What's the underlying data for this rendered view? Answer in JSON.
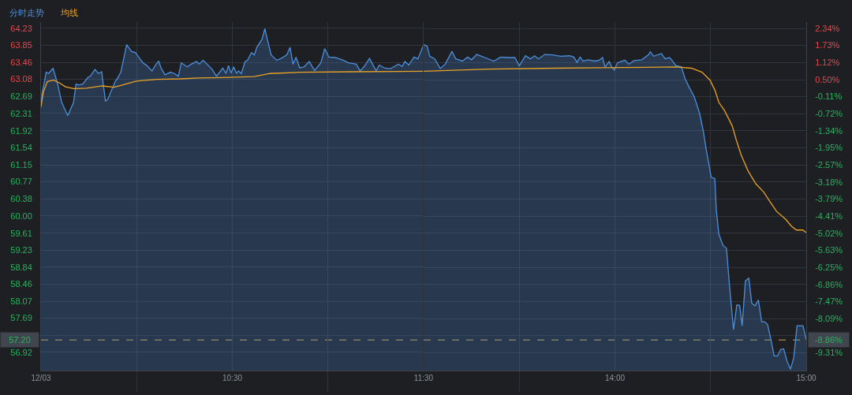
{
  "chart_data": [
    {
      "type": "line",
      "series": [
        {
          "name": "分时走势",
          "type": "area",
          "color": "#4d8fdc",
          "x": [
            9.5,
            9.505,
            9.527,
            9.54,
            9.563,
            9.587,
            9.608,
            9.64,
            9.67,
            9.683,
            9.697,
            9.718,
            9.745,
            9.758,
            9.782,
            9.8,
            9.817,
            9.827,
            9.837,
            9.848,
            9.888,
            9.902,
            9.917,
            9.948,
            9.972,
            9.995,
            10.012,
            10.033,
            10.053,
            10.08,
            10.102,
            10.115,
            10.128,
            10.148,
            10.177,
            10.197,
            10.218,
            10.233,
            10.265,
            10.285,
            10.313,
            10.327,
            10.347,
            10.375,
            10.395,
            10.417,
            10.45,
            10.467,
            10.48,
            10.493,
            10.507,
            10.522,
            10.532,
            10.547,
            10.567,
            10.58,
            10.6,
            10.615,
            10.628,
            10.655,
            10.67,
            10.683,
            10.703,
            10.732,
            10.752,
            10.785,
            10.802,
            10.817,
            10.833,
            10.852,
            10.875,
            10.902,
            10.93,
            10.963,
            10.983,
            11.005,
            11.038,
            11.08,
            11.107,
            11.148,
            11.168,
            11.19,
            11.217,
            11.252,
            11.268,
            11.298,
            11.327,
            11.368,
            11.388,
            11.402,
            11.422,
            11.45,
            11.47,
            11.5
          ],
          "values": [
            62.44,
            62.74,
            63.24,
            63.21,
            63.33,
            62.97,
            62.56,
            62.26,
            62.56,
            62.97,
            62.95,
            62.97,
            63.12,
            63.15,
            63.3,
            63.21,
            63.25,
            62.91,
            62.59,
            62.62,
            63.03,
            63.12,
            63.24,
            63.86,
            63.71,
            63.68,
            63.57,
            63.45,
            63.39,
            63.27,
            63.42,
            63.49,
            63.33,
            63.18,
            63.24,
            63.21,
            63.15,
            63.45,
            63.36,
            63.42,
            63.48,
            63.42,
            63.51,
            63.39,
            63.3,
            63.15,
            63.33,
            63.21,
            63.39,
            63.22,
            63.36,
            63.21,
            63.27,
            63.21,
            63.48,
            63.51,
            63.68,
            63.63,
            63.8,
            63.98,
            64.22,
            63.98,
            63.63,
            63.51,
            63.54,
            63.63,
            63.8,
            63.42,
            63.58,
            63.34,
            63.36,
            63.48,
            63.28,
            63.45,
            63.77,
            63.58,
            63.57,
            63.51,
            63.45,
            63.42,
            63.27,
            63.37,
            63.55,
            63.27,
            63.4,
            63.33,
            63.32,
            63.42,
            63.37,
            63.48,
            63.4,
            63.58,
            63.54,
            63.86
          ]
        },
        {
          "name": "均线",
          "color": "#e9a227",
          "x": [
            9.5,
            9.512,
            9.533,
            9.567,
            9.595,
            9.628,
            9.67,
            9.738,
            9.82,
            9.882,
            9.917,
            9.998,
            10.108,
            10.232,
            10.327,
            10.45,
            10.615,
            10.697,
            10.86,
            11.135,
            11.5
          ],
          "values": [
            62.47,
            62.79,
            63.03,
            63.06,
            63.0,
            62.91,
            62.87,
            62.88,
            62.93,
            62.9,
            62.94,
            63.04,
            63.08,
            63.09,
            63.11,
            63.12,
            63.14,
            63.21,
            63.24,
            63.25,
            63.26
          ]
        }
      ],
      "xlim": [
        9.5,
        11.5
      ],
      "xticks": [
        {
          "value": 9.5,
          "label": "12/03"
        },
        {
          "value": 10,
          "label": null
        },
        {
          "value": 10.5,
          "label": "10:30"
        },
        {
          "value": 11,
          "label": null
        },
        {
          "value": 11.5,
          "label": "11:30"
        }
      ],
      "ylim": [
        56.51,
        64.37
      ],
      "yticks": [
        64.23,
        63.85,
        63.46,
        63.08,
        62.69,
        62.31,
        61.92,
        61.54,
        61.15,
        60.77,
        60.38,
        {
          "value": 60,
          "label": "60.00"
        },
        59.61,
        59.23,
        58.84,
        58.46,
        58.07,
        57.69,
        {
          "value": 57.31,
          "label": null
        },
        56.92
      ],
      "ref_lines": [
        {
          "axis": "y",
          "value": 57.2,
          "label": "57.20",
          "color": "#c9a54f",
          "line_style": "dashed"
        }
      ],
      "grid": true,
      "legend": "top left"
    },
    {
      "type": "line",
      "series": [
        {
          "type": "area",
          "color": "#4d8fdc",
          "x": [
            13.0,
            13.018,
            13.032,
            13.058,
            13.087,
            13.113,
            13.148,
            13.168,
            13.203,
            13.23,
            13.25,
            13.278,
            13.32,
            13.367,
            13.402,
            13.442,
            13.477,
            13.5,
            13.532,
            13.558,
            13.58,
            13.6,
            13.633,
            13.675,
            13.717,
            13.763,
            13.785,
            13.802,
            13.818,
            13.833,
            13.86,
            13.895,
            13.918,
            13.935,
            13.948,
            13.97,
            13.983,
            13.997,
            14.013,
            14.052,
            14.072,
            14.1,
            14.14,
            14.175,
            14.185,
            14.202,
            14.243,
            14.263,
            14.285,
            14.298,
            14.318,
            14.347,
            14.367,
            14.387,
            14.415,
            14.442,
            14.462,
            14.475,
            14.49,
            14.503,
            14.522,
            14.53,
            14.543,
            14.565,
            14.583,
            14.598,
            14.608,
            14.62,
            14.637,
            14.652,
            14.665,
            14.682,
            14.7,
            14.715,
            14.732,
            14.75,
            14.767,
            14.783,
            14.798,
            14.815,
            14.832,
            14.85,
            14.867,
            14.882,
            14.9,
            14.918,
            14.935,
            14.952,
            14.983,
            15
          ],
          "values": [
            63.86,
            63.83,
            63.6,
            63.54,
            63.32,
            63.42,
            63.71,
            63.54,
            63.49,
            63.58,
            63.52,
            63.64,
            63.57,
            63.49,
            63.58,
            63.57,
            63.57,
            63.38,
            63.61,
            63.54,
            63.61,
            63.54,
            63.64,
            63.63,
            63.6,
            63.61,
            63.58,
            63.46,
            63.58,
            63.49,
            63.52,
            63.49,
            63.51,
            63.57,
            63.36,
            63.48,
            63.36,
            63.29,
            63.45,
            63.51,
            63.42,
            63.5,
            63.52,
            63.63,
            63.7,
            63.6,
            63.66,
            63.54,
            63.57,
            63.51,
            63.39,
            63.36,
            63.09,
            62.91,
            62.68,
            62.32,
            61.91,
            61.55,
            61.19,
            60.87,
            60.84,
            60.13,
            59.59,
            59.33,
            59.27,
            58.47,
            57.99,
            57.43,
            57.99,
            57.98,
            57.52,
            58.53,
            58.6,
            58.03,
            57.97,
            58.1,
            57.61,
            57.61,
            57.55,
            57.22,
            56.84,
            56.84,
            56.99,
            57.0,
            56.72,
            56.54,
            56.81,
            57.52,
            57.52,
            57.2
          ]
        },
        {
          "color": "#e9a227",
          "x": [
            13.0,
            13.347,
            13.688,
            14.168,
            14.318,
            14.4,
            14.455,
            14.497,
            14.523,
            14.543,
            14.572,
            14.613,
            14.633,
            14.66,
            14.695,
            14.737,
            14.777,
            14.812,
            14.845,
            14.893,
            14.922,
            14.948,
            14.982,
            15
          ],
          "values": [
            63.26,
            63.31,
            63.33,
            63.35,
            63.36,
            63.33,
            63.24,
            63.06,
            62.83,
            62.56,
            62.38,
            62.03,
            61.73,
            61.37,
            61.02,
            60.72,
            60.54,
            60.31,
            60.1,
            59.92,
            59.77,
            59.68,
            59.68,
            59.62
          ]
        }
      ],
      "xlim": [
        13,
        15
      ],
      "xticks": [
        {
          "value": 13.5,
          "label": null
        },
        {
          "value": 14,
          "label": "14:00"
        },
        {
          "value": 14.5,
          "label": null
        },
        {
          "value": 15,
          "label": "15:00"
        }
      ],
      "ylim": [
        56.51,
        64.37
      ],
      "y2lim": [
        -9.96,
        2.57
      ],
      "y2ticks": [
        {
          "value": 2.34,
          "label": "2.34%"
        },
        {
          "value": 1.73,
          "label": "1.73%"
        },
        {
          "value": 1.12,
          "label": "1.12%"
        },
        {
          "value": 0.5,
          "label": "0.50%"
        },
        {
          "value": -0.11,
          "label": "-0.11%"
        },
        {
          "value": -0.72,
          "label": "-0.72%"
        },
        {
          "value": -1.34,
          "label": "-1.34%"
        },
        {
          "value": -1.95,
          "label": "-1.95%"
        },
        {
          "value": -2.57,
          "label": "-2.57%"
        },
        {
          "value": -3.18,
          "label": "-3.18%"
        },
        {
          "value": -3.79,
          "label": "-3.79%"
        },
        {
          "value": -4.41,
          "label": "-4.41%"
        },
        {
          "value": -5.02,
          "label": "-5.02%"
        },
        {
          "value": -5.63,
          "label": "-5.63%"
        },
        {
          "value": -6.25,
          "label": "-6.25%"
        },
        {
          "value": -6.86,
          "label": "-6.86%"
        },
        {
          "value": -7.47,
          "label": "-7.47%"
        },
        {
          "value": -8.09,
          "label": "-8.09%"
        },
        {
          "value": -8.7,
          "label": null
        },
        {
          "value": -9.31,
          "label": "-9.31%"
        }
      ],
      "ref_lines": [
        {
          "axis": "y2",
          "value": -8.86,
          "label": "-8.86%",
          "color": "#c9a54f",
          "line_style": "dashed"
        }
      ],
      "grid": true
    }
  ]
}
